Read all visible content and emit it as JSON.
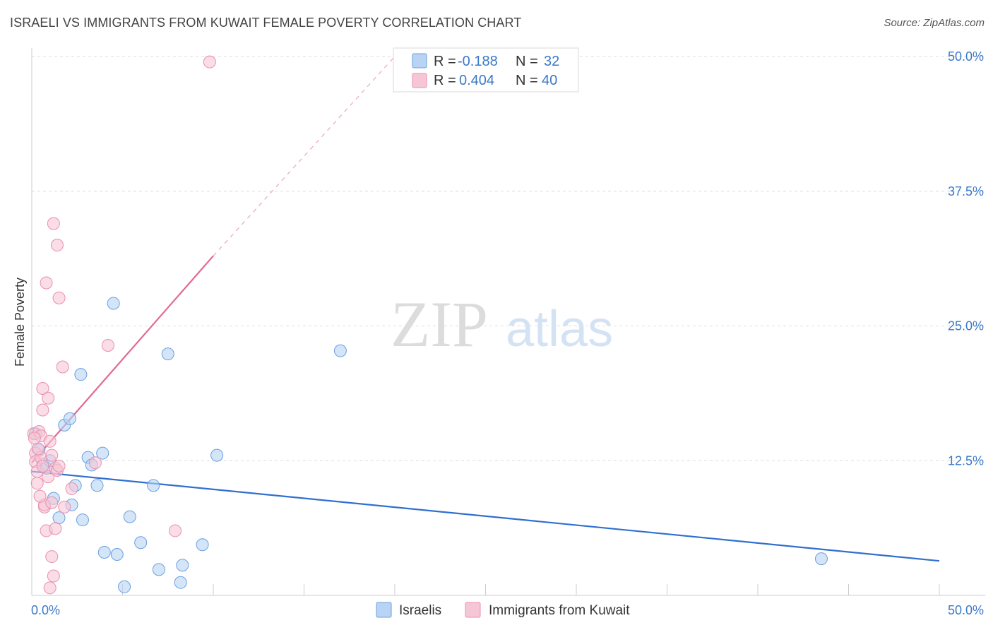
{
  "title": "ISRAELI VS IMMIGRANTS FROM KUWAIT FEMALE POVERTY CORRELATION CHART",
  "source": "Source: ZipAtlas.com",
  "watermark": {
    "zip": "ZIP",
    "atlas": "atlas"
  },
  "chart_data": {
    "type": "scatter",
    "ylabel": "Female Poverty",
    "xlim": [
      0,
      50
    ],
    "ylim": [
      0,
      50
    ],
    "x_tick_labels": [
      "0.0%",
      "50.0%"
    ],
    "y_ticks": [
      12.5,
      25.0,
      37.5,
      50.0
    ],
    "y_tick_labels": [
      "12.5%",
      "25.0%",
      "37.5%",
      "50.0%"
    ],
    "grid": true,
    "legend_top": [
      {
        "r_label": "R = ",
        "r_value": "-0.188",
        "n_label": "N = ",
        "n_value": "32"
      },
      {
        "r_label": "R = ",
        "r_value": "0.404",
        "n_label": "N = ",
        "n_value": "40"
      }
    ],
    "series": [
      {
        "name": "Israelis",
        "color": "#6a9fe0",
        "fill": "#b8d3f3",
        "trend": {
          "x": [
            0,
            50
          ],
          "y": [
            11.5,
            3.2
          ],
          "dashed_extension": false,
          "line_color": "#2f6fcf"
        },
        "points": [
          [
            0.2,
            15.0
          ],
          [
            0.4,
            13.5
          ],
          [
            0.6,
            12.2
          ],
          [
            0.8,
            11.8
          ],
          [
            1.0,
            12.5
          ],
          [
            1.2,
            9.0
          ],
          [
            1.5,
            7.2
          ],
          [
            1.8,
            15.8
          ],
          [
            2.1,
            16.4
          ],
          [
            2.2,
            8.4
          ],
          [
            2.4,
            10.2
          ],
          [
            2.7,
            20.5
          ],
          [
            2.8,
            7.0
          ],
          [
            3.1,
            12.8
          ],
          [
            3.3,
            12.1
          ],
          [
            3.6,
            10.2
          ],
          [
            3.9,
            13.2
          ],
          [
            4.0,
            4.0
          ],
          [
            4.5,
            27.1
          ],
          [
            4.7,
            3.8
          ],
          [
            5.1,
            0.8
          ],
          [
            5.4,
            7.3
          ],
          [
            6.0,
            4.9
          ],
          [
            6.7,
            10.2
          ],
          [
            7.0,
            2.4
          ],
          [
            7.5,
            22.4
          ],
          [
            8.2,
            1.2
          ],
          [
            8.3,
            2.8
          ],
          [
            9.4,
            4.7
          ],
          [
            10.2,
            13.0
          ],
          [
            17.0,
            22.7
          ],
          [
            43.5,
            3.4
          ]
        ]
      },
      {
        "name": "Immigrants from Kuwait",
        "color": "#e98fae",
        "fill": "#f7c6d6",
        "trend": {
          "x": [
            0,
            10
          ],
          "y": [
            12.3,
            31.5
          ],
          "dashed_extension": true,
          "dash_to": [
            20,
            50
          ],
          "line_color": "#e06a93"
        },
        "points": [
          [
            0.1,
            15.0
          ],
          [
            0.2,
            13.2
          ],
          [
            0.2,
            12.4
          ],
          [
            0.3,
            11.5
          ],
          [
            0.3,
            10.4
          ],
          [
            0.4,
            15.2
          ],
          [
            0.5,
            14.8
          ],
          [
            0.5,
            12.8
          ],
          [
            0.6,
            12.0
          ],
          [
            0.6,
            17.2
          ],
          [
            0.6,
            19.2
          ],
          [
            0.7,
            8.2
          ],
          [
            0.7,
            8.4
          ],
          [
            0.8,
            29.0
          ],
          [
            0.8,
            6.0
          ],
          [
            0.9,
            11.0
          ],
          [
            0.9,
            18.3
          ],
          [
            1.0,
            14.3
          ],
          [
            1.0,
            0.7
          ],
          [
            1.1,
            8.6
          ],
          [
            1.1,
            3.6
          ],
          [
            1.1,
            13.0
          ],
          [
            1.2,
            1.8
          ],
          [
            1.2,
            34.5
          ],
          [
            1.3,
            6.2
          ],
          [
            1.3,
            11.8
          ],
          [
            1.4,
            11.6
          ],
          [
            1.4,
            32.5
          ],
          [
            1.5,
            27.6
          ],
          [
            1.5,
            12.0
          ],
          [
            1.7,
            21.2
          ],
          [
            1.8,
            8.2
          ],
          [
            2.2,
            9.9
          ],
          [
            3.5,
            12.3
          ],
          [
            4.2,
            23.2
          ],
          [
            7.9,
            6.0
          ],
          [
            9.8,
            49.5
          ],
          [
            0.35,
            13.6
          ],
          [
            0.15,
            14.6
          ],
          [
            0.45,
            9.2
          ]
        ]
      }
    ]
  },
  "bottom_legend": [
    "Israelis",
    "Immigrants from Kuwait"
  ]
}
